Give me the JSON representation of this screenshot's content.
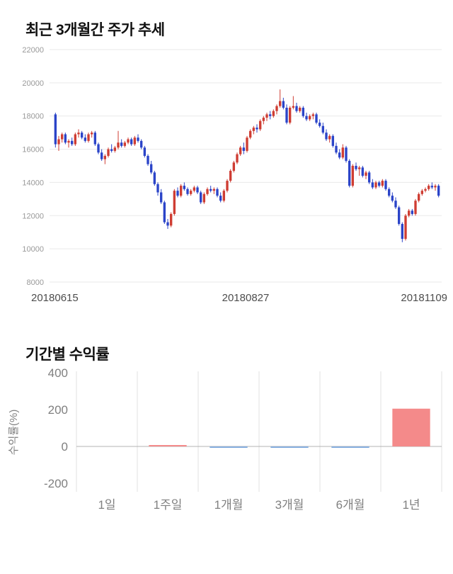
{
  "page": {
    "background": "#ffffff"
  },
  "price_section": {
    "title": "최근 3개월간 주가 추세"
  },
  "returns_section": {
    "title": "기간별 수익률"
  },
  "chart_data": [
    {
      "type": "candlestick",
      "title": "최근 3개월간 주가 추세",
      "ylim": [
        8000,
        22000
      ],
      "y_ticks": [
        22000,
        20000,
        18000,
        16000,
        14000,
        12000,
        10000,
        8000
      ],
      "x_labels": [
        "20180615",
        "20180827",
        "20181109"
      ],
      "up_color": "#cf3d33",
      "down_color": "#2b44c8",
      "grid_color": "#e9e9e9",
      "y_tick_color": "#999999",
      "x_tick_color": "#4d4d4d",
      "candles": [
        [
          18100,
          18200,
          16100,
          16300
        ],
        [
          16300,
          16800,
          15900,
          16600
        ],
        [
          16600,
          17000,
          16400,
          16900
        ],
        [
          16900,
          17000,
          16300,
          16400
        ],
        [
          16400,
          16600,
          16100,
          16500
        ],
        [
          16500,
          16700,
          16200,
          16300
        ],
        [
          16300,
          17000,
          16200,
          16900
        ],
        [
          16900,
          17200,
          16700,
          17000
        ],
        [
          17000,
          17100,
          16600,
          16700
        ],
        [
          16700,
          16900,
          16400,
          16500
        ],
        [
          16500,
          17000,
          16400,
          16900
        ],
        [
          16900,
          17100,
          16700,
          17000
        ],
        [
          17000,
          17100,
          16200,
          16300
        ],
        [
          16300,
          16400,
          15700,
          15800
        ],
        [
          15800,
          16000,
          15300,
          15400
        ],
        [
          15400,
          15700,
          15100,
          15600
        ],
        [
          15600,
          16100,
          15500,
          16000
        ],
        [
          16000,
          16300,
          15800,
          15900
        ],
        [
          15900,
          16200,
          15800,
          16100
        ],
        [
          16100,
          17100,
          16000,
          16400
        ],
        [
          16400,
          16600,
          16100,
          16200
        ],
        [
          16200,
          16500,
          16100,
          16400
        ],
        [
          16400,
          16700,
          16300,
          16600
        ],
        [
          16600,
          16700,
          16200,
          16300
        ],
        [
          16300,
          16800,
          16200,
          16700
        ],
        [
          16700,
          16900,
          16400,
          16500
        ],
        [
          16500,
          16600,
          16000,
          16100
        ],
        [
          16100,
          16200,
          15500,
          15600
        ],
        [
          15600,
          15700,
          15000,
          15100
        ],
        [
          15100,
          15300,
          14500,
          14600
        ],
        [
          14600,
          14700,
          13800,
          13900
        ],
        [
          13900,
          14000,
          13200,
          13400
        ],
        [
          13400,
          13600,
          12700,
          12800
        ],
        [
          12800,
          12900,
          11500,
          11600
        ],
        [
          11600,
          11800,
          11200,
          11400
        ],
        [
          11400,
          12200,
          11300,
          12100
        ],
        [
          12100,
          13600,
          12000,
          13500
        ],
        [
          13500,
          13700,
          13100,
          13200
        ],
        [
          13200,
          13900,
          13100,
          13800
        ],
        [
          13800,
          14000,
          13500,
          13600
        ],
        [
          13600,
          13700,
          13200,
          13300
        ],
        [
          13300,
          13600,
          13200,
          13500
        ],
        [
          13500,
          13800,
          13400,
          13700
        ],
        [
          13700,
          13800,
          13300,
          13400
        ],
        [
          13400,
          13500,
          12700,
          12800
        ],
        [
          12800,
          13400,
          12700,
          13300
        ],
        [
          13300,
          13700,
          13200,
          13600
        ],
        [
          13600,
          13800,
          13400,
          13500
        ],
        [
          13500,
          13700,
          13300,
          13600
        ],
        [
          13600,
          13700,
          13100,
          13200
        ],
        [
          13200,
          13400,
          12800,
          12900
        ],
        [
          12900,
          13600,
          12800,
          13500
        ],
        [
          13500,
          14200,
          13400,
          14100
        ],
        [
          14100,
          14800,
          14000,
          14700
        ],
        [
          14700,
          15300,
          14600,
          15200
        ],
        [
          15200,
          15800,
          15100,
          15700
        ],
        [
          15700,
          16200,
          15600,
          16100
        ],
        [
          16100,
          16400,
          15700,
          15900
        ],
        [
          15900,
          16800,
          15800,
          16700
        ],
        [
          16700,
          17200,
          16600,
          17100
        ],
        [
          17100,
          17400,
          16900,
          17300
        ],
        [
          17300,
          17500,
          17000,
          17200
        ],
        [
          17200,
          17800,
          17100,
          17700
        ],
        [
          17700,
          18000,
          17500,
          17900
        ],
        [
          17900,
          18200,
          17700,
          18100
        ],
        [
          18100,
          18300,
          17800,
          18000
        ],
        [
          18000,
          18400,
          17900,
          18300
        ],
        [
          18300,
          18700,
          18100,
          18600
        ],
        [
          18600,
          19600,
          18500,
          18900
        ],
        [
          18900,
          19100,
          18400,
          18500
        ],
        [
          18500,
          18700,
          17500,
          17600
        ],
        [
          17600,
          18600,
          17500,
          18500
        ],
        [
          18500,
          19200,
          18400,
          18600
        ],
        [
          18600,
          18800,
          18200,
          18300
        ],
        [
          18300,
          18600,
          18200,
          18500
        ],
        [
          18500,
          18600,
          17900,
          18000
        ],
        [
          18000,
          18200,
          17700,
          17800
        ],
        [
          17800,
          18100,
          17700,
          18000
        ],
        [
          18000,
          18200,
          17800,
          18100
        ],
        [
          18100,
          18200,
          17500,
          17600
        ],
        [
          17600,
          17800,
          17300,
          17400
        ],
        [
          17400,
          17600,
          16900,
          17000
        ],
        [
          17000,
          17200,
          16500,
          16600
        ],
        [
          16600,
          16900,
          16400,
          16800
        ],
        [
          16800,
          16900,
          16100,
          16200
        ],
        [
          16200,
          16400,
          15700,
          15800
        ],
        [
          15800,
          16000,
          15400,
          15500
        ],
        [
          15500,
          16300,
          15400,
          16100
        ],
        [
          16100,
          16200,
          15200,
          15300
        ],
        [
          15300,
          15400,
          13700,
          13800
        ],
        [
          13800,
          15100,
          13700,
          15000
        ],
        [
          15000,
          15200,
          14700,
          14800
        ],
        [
          14800,
          15000,
          14400,
          14900
        ],
        [
          14900,
          15000,
          14300,
          14400
        ],
        [
          14400,
          14700,
          14200,
          14600
        ],
        [
          14600,
          14700,
          13900,
          14000
        ],
        [
          14000,
          14200,
          13600,
          13700
        ],
        [
          13700,
          14100,
          13600,
          14000
        ],
        [
          14000,
          14100,
          13700,
          13800
        ],
        [
          13800,
          14200,
          13700,
          14100
        ],
        [
          14100,
          14200,
          13500,
          13600
        ],
        [
          13600,
          13700,
          13100,
          13200
        ],
        [
          13200,
          13400,
          12800,
          12900
        ],
        [
          12900,
          13100,
          12400,
          12500
        ],
        [
          12500,
          12600,
          11400,
          11500
        ],
        [
          11500,
          11600,
          10400,
          10600
        ],
        [
          10600,
          12100,
          10500,
          12000
        ],
        [
          12000,
          12400,
          11900,
          12300
        ],
        [
          12300,
          12400,
          12000,
          12100
        ],
        [
          12100,
          13000,
          12000,
          12900
        ],
        [
          12900,
          13400,
          12800,
          13300
        ],
        [
          13300,
          13600,
          13200,
          13500
        ],
        [
          13500,
          13700,
          13400,
          13600
        ],
        [
          13600,
          13900,
          13500,
          13800
        ],
        [
          13800,
          14000,
          13600,
          13700
        ],
        [
          13700,
          13900,
          13500,
          13800
        ],
        [
          13800,
          13900,
          13100,
          13200
        ]
      ]
    },
    {
      "type": "bar",
      "title": "기간별 수익률",
      "ylabel": "수익률(%)",
      "categories": [
        "1일",
        "1주일",
        "1개월",
        "3개월",
        "6개월",
        "1년"
      ],
      "values": [
        0,
        4,
        -3,
        -1,
        -3,
        205
      ],
      "ylim": [
        -200,
        400
      ],
      "y_ticks": [
        400,
        200,
        0,
        -200
      ],
      "pos_color": "#f48a8a",
      "neg_color": "#86aede",
      "grid_color": "#e0e0e0",
      "zero_line_color": "#b3b3b3",
      "tick_color": "#808080"
    }
  ]
}
